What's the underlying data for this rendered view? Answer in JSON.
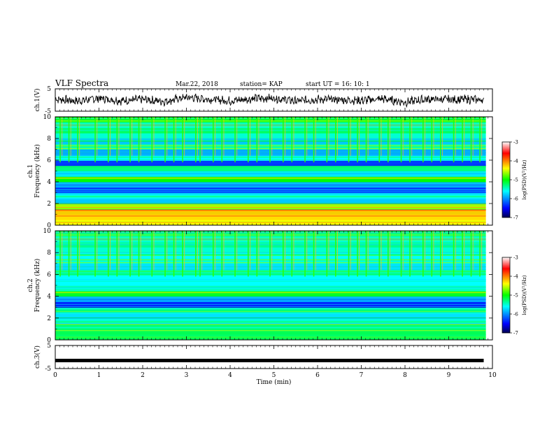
{
  "header": {
    "title": "VLF Spectra",
    "date": "Mar.22, 2018",
    "station": "station= KAP",
    "start_ut": "start  UT =   16: 10: 1"
  },
  "colorbar": {
    "label": "log(PSD)(V²/Hz)",
    "ticks": [
      "-3",
      "-4",
      "-5",
      "-6",
      "-7"
    ],
    "range": [
      -7,
      -3
    ],
    "colors": [
      "#000050",
      "#0000ff",
      "#00ffff",
      "#00ff00",
      "#ffff00",
      "#ff0000",
      "#ffffff"
    ]
  },
  "chart_data": [
    {
      "type": "line",
      "panel": "ch1_waveform",
      "ylabel": "ch.1(V)",
      "xlim": [
        0,
        10
      ],
      "ylim": [
        -5,
        5
      ],
      "yticks": [
        "5",
        "-5"
      ],
      "series": [
        {
          "x": [
            0,
            0.5,
            1,
            1.5,
            2,
            2.5,
            3,
            3.5,
            4,
            4.5,
            5,
            5.5,
            6,
            6.5,
            7,
            7.5,
            8,
            8.5,
            9,
            9.5,
            9.8
          ],
          "values": [
            0.5,
            -0.5,
            0.8,
            -0.3,
            0.2,
            -0.6,
            1.2,
            0.4,
            -0.4,
            0.6,
            0.9,
            -0.5,
            0.3,
            0.1,
            -0.2,
            0.5,
            -1.0,
            0.4,
            0.2,
            0.3,
            0.0
          ]
        }
      ],
      "color": "#000000"
    },
    {
      "type": "heatmap",
      "panel": "ch1_spectrogram",
      "ylabel": "ch.1\nFrequency (kHz)",
      "xlim": [
        0,
        10
      ],
      "ylim": [
        0,
        10
      ],
      "yticks": [
        "0",
        "2",
        "4",
        "6",
        "8",
        "10"
      ],
      "freq_kHz": [
        0.25,
        0.75,
        1.25,
        1.75,
        2.25,
        2.75,
        3.25,
        3.75,
        4.25,
        4.75,
        5.25,
        5.75,
        6.25,
        6.75,
        7.25,
        7.75,
        8.25,
        8.75,
        9.25,
        9.75
      ],
      "log_psd": [
        -4.4,
        -4.3,
        -4.2,
        -4.6,
        -5.8,
        -5.6,
        -6.3,
        -5.9,
        -5.0,
        -5.7,
        -5.3,
        -6.3,
        -5.6,
        -5.9,
        -5.4,
        -5.8,
        -5.5,
        -5.3,
        -5.5,
        -5.1
      ],
      "spike_times_min": [
        0.1,
        0.3,
        0.5,
        0.9,
        1.2,
        1.4,
        1.7,
        1.9,
        2.2,
        2.5,
        2.7,
        2.9,
        3.2,
        3.3,
        3.6,
        3.8,
        4.1,
        4.4,
        4.6,
        4.9,
        5.2,
        5.4,
        5.7,
        5.9,
        6.2,
        6.4,
        6.7,
        6.9,
        7.1,
        7.4,
        7.6,
        7.9,
        8.1,
        8.4,
        8.6,
        8.8,
        9.1,
        9.3,
        9.5,
        9.7
      ]
    },
    {
      "type": "heatmap",
      "panel": "ch2_spectrogram",
      "ylabel": "ch.2\nFrequency (kHz)",
      "xlim": [
        0,
        10
      ],
      "ylim": [
        0,
        10
      ],
      "yticks": [
        "0",
        "2",
        "4",
        "6",
        "8",
        "10"
      ],
      "freq_kHz": [
        0.25,
        0.75,
        1.25,
        1.75,
        2.25,
        2.75,
        3.25,
        3.75,
        4.25,
        4.75,
        5.25,
        5.75,
        6.25,
        6.75,
        7.25,
        7.75,
        8.25,
        8.75,
        9.25,
        9.75
      ],
      "log_psd": [
        -5.2,
        -5.2,
        -5.3,
        -5.5,
        -5.7,
        -5.4,
        -6.4,
        -5.9,
        -5.1,
        -5.5,
        -5.6,
        -5.6,
        -5.4,
        -5.7,
        -5.5,
        -5.6,
        -5.5,
        -5.4,
        -5.5,
        -5.3
      ],
      "spike_times_min": [
        0.1,
        0.3,
        0.5,
        0.9,
        1.2,
        1.4,
        1.7,
        1.9,
        2.2,
        2.5,
        2.7,
        2.9,
        3.2,
        3.3,
        3.6,
        3.8,
        4.1,
        4.4,
        4.6,
        4.9,
        5.2,
        5.4,
        5.7,
        5.9,
        6.2,
        6.4,
        6.7,
        6.9,
        7.1,
        7.4,
        7.6,
        7.9,
        8.1,
        8.4,
        8.6,
        8.8,
        9.1,
        9.3,
        9.5,
        9.7
      ]
    },
    {
      "type": "line",
      "panel": "ch3_waveform",
      "ylabel": "ch.3(V)",
      "xlabel": "Time (min)",
      "xlim": [
        0,
        10
      ],
      "ylim": [
        -5,
        5
      ],
      "yticks": [
        "5",
        "-5"
      ],
      "xticks": [
        "0",
        "1",
        "2",
        "3",
        "4",
        "5",
        "6",
        "7",
        "8",
        "9",
        "10"
      ],
      "series": [
        {
          "x": [
            0,
            9.8
          ],
          "values": [
            -1.5,
            -1.5
          ]
        }
      ],
      "color": "#000000"
    }
  ]
}
